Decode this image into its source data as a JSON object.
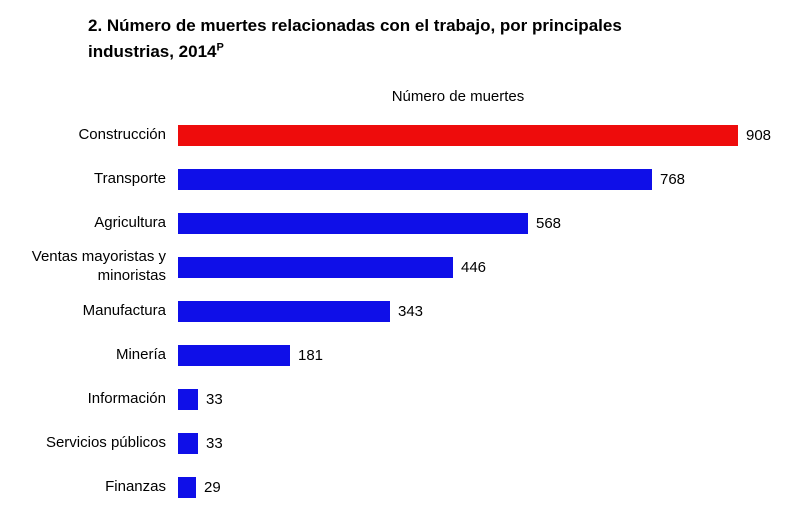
{
  "title": {
    "line1": "2. Número de muertes relacionadas con el trabajo, por principales",
    "line2": "industrias, 2014",
    "superscript": "P"
  },
  "chart_data": {
    "type": "bar",
    "orientation": "horizontal",
    "title": "2. Número de muertes relacionadas con el trabajo, por principales industrias, 2014P",
    "axis_top_label": "Número de muertes",
    "categories": [
      "Construcción",
      "Transporte",
      "Agricultura",
      "Ventas mayoristas y minoristas",
      "Manufactura",
      "Minería",
      "Información",
      "Servicios públicos",
      "Finanzas"
    ],
    "values": [
      908,
      768,
      568,
      446,
      343,
      181,
      33,
      33,
      29
    ],
    "colors": [
      "#ee0c0c",
      "#0f0fe8",
      "#0f0fe8",
      "#0f0fe8",
      "#0f0fe8",
      "#0f0fe8",
      "#0f0fe8",
      "#0f0fe8",
      "#0f0fe8"
    ],
    "xmax": 908,
    "xlabel": "",
    "ylabel": "",
    "grid": false,
    "legend": false,
    "highlight_color": "#ee0c0c",
    "default_color": "#0f0fe8"
  }
}
